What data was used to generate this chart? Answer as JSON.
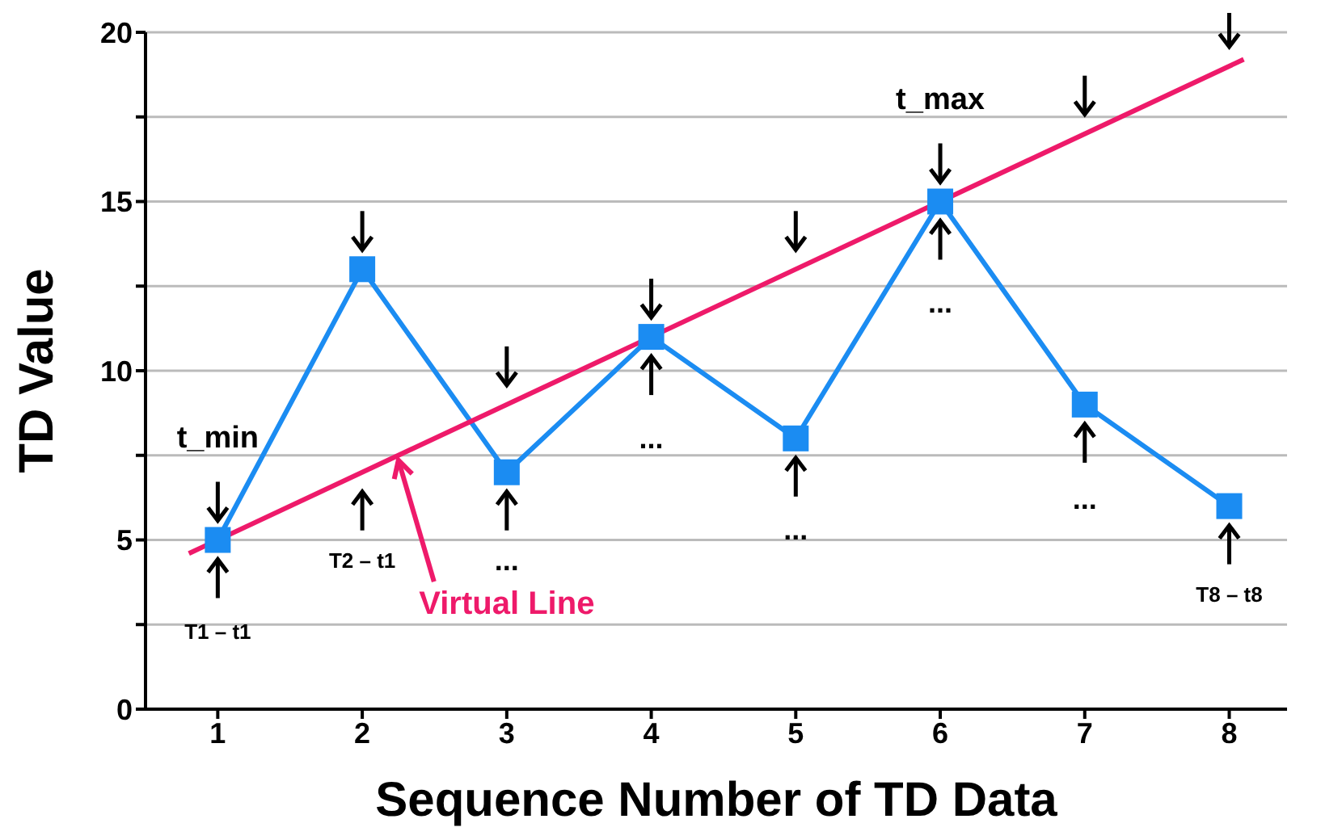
{
  "chart_data": {
    "type": "line",
    "xlabel": "Sequence Number of TD Data",
    "ylabel": "TD Value",
    "xlim": [
      0.5,
      8.4
    ],
    "xticks": [
      1,
      2,
      3,
      4,
      5,
      6,
      7,
      8
    ],
    "ylim": [
      0,
      20
    ],
    "yticks": [
      0,
      {
        "value": 2.5,
        "label": null
      },
      5,
      {
        "value": 7.5,
        "label": null
      },
      10,
      {
        "value": 12.5,
        "label": null
      },
      15,
      {
        "value": 17.5,
        "label": null
      },
      20
    ],
    "grid": "y",
    "legend": false,
    "series": [
      {
        "color": "#1b8cf2",
        "x": [
          1,
          2,
          3,
          4,
          5,
          6,
          7,
          8
        ],
        "values": [
          5,
          13,
          7,
          11,
          8,
          15,
          9,
          6
        ],
        "marker": "square"
      },
      {
        "color": "#ee1a6a",
        "x": [
          0.8,
          8.1
        ],
        "values": [
          4.6,
          19.2
        ],
        "marker": "none"
      }
    ],
    "annotations": [
      "t_min",
      "T1 – t1",
      "T2 – t1",
      "...",
      "...",
      "...",
      "...",
      "...",
      "t_max",
      "T8 – t8",
      {
        "text": "Virtual Line",
        "x": 2.25,
        "y": 7.5
      }
    ]
  }
}
